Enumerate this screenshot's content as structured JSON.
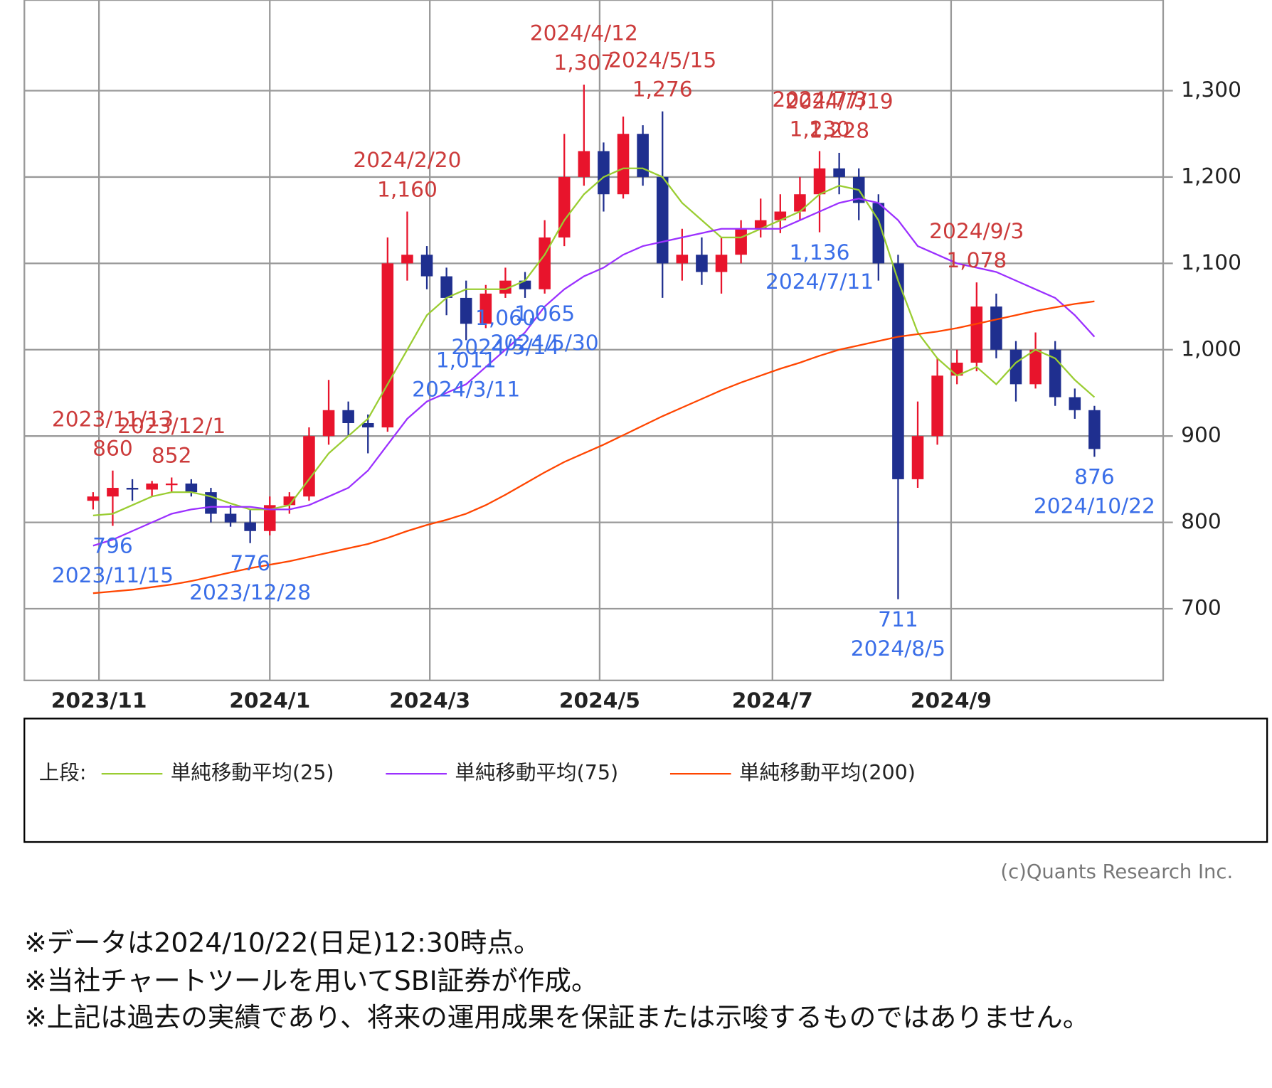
{
  "chart_data": {
    "type": "candlestick",
    "xlim": [
      -3.5,
      54.5
    ],
    "xticks": [
      {
        "value": 0.3,
        "label": "2023/11"
      },
      {
        "value": 9.0,
        "label": "2024/1"
      },
      {
        "value": 17.15,
        "label": "2024/3"
      },
      {
        "value": 25.8,
        "label": "2024/5"
      },
      {
        "value": 34.6,
        "label": "2024/7"
      },
      {
        "value": 43.7,
        "label": "2024/9"
      }
    ],
    "ylim": [
      617,
      1405
    ],
    "yticks": [
      700,
      800,
      900,
      {
        "value": 1000,
        "label": "1,000"
      },
      {
        "value": 1100,
        "label": "1,100"
      },
      {
        "value": 1200,
        "label": "1,200"
      },
      {
        "value": 1300,
        "label": "1,300"
      }
    ],
    "grid": true,
    "up_color": "#e8142c",
    "down_color": "#1f2f8f",
    "open": [
      825,
      830,
      840,
      838,
      845,
      845,
      835,
      810,
      800,
      790,
      820,
      830,
      900,
      930,
      915,
      910,
      1100,
      1110,
      1085,
      1060,
      1030,
      1065,
      1080,
      1070,
      1130,
      1200,
      1230,
      1180,
      1250,
      1200,
      1100,
      1110,
      1090,
      1110,
      1140,
      1150,
      1160,
      1180,
      1210,
      1200,
      1170,
      1100,
      850,
      900,
      970,
      985,
      1050,
      1000,
      960,
      1000,
      945,
      930
    ],
    "high": [
      835,
      860,
      850,
      848,
      852,
      850,
      840,
      820,
      815,
      830,
      835,
      910,
      965,
      940,
      925,
      1130,
      1160,
      1120,
      1095,
      1080,
      1075,
      1095,
      1090,
      1150,
      1250,
      1307,
      1240,
      1270,
      1260,
      1276,
      1140,
      1130,
      1130,
      1150,
      1175,
      1180,
      1200,
      1230,
      1228,
      1210,
      1180,
      1110,
      940,
      990,
      1000,
      1078,
      1065,
      1010,
      1020,
      1010,
      955,
      935
    ],
    "low": [
      815,
      796,
      825,
      830,
      835,
      830,
      800,
      795,
      776,
      785,
      810,
      825,
      890,
      900,
      880,
      905,
      1080,
      1070,
      1040,
      1011,
      1025,
      1060,
      1060,
      1065,
      1120,
      1190,
      1160,
      1175,
      1190,
      1060,
      1080,
      1075,
      1065,
      1100,
      1130,
      1135,
      1150,
      1136,
      1180,
      1150,
      1080,
      711,
      840,
      890,
      960,
      975,
      990,
      940,
      955,
      935,
      920,
      876
    ],
    "close": [
      830,
      840,
      838,
      845,
      845,
      835,
      810,
      800,
      790,
      820,
      830,
      900,
      930,
      915,
      910,
      1100,
      1110,
      1085,
      1060,
      1030,
      1065,
      1080,
      1070,
      1130,
      1200,
      1230,
      1180,
      1250,
      1200,
      1100,
      1110,
      1090,
      1110,
      1140,
      1150,
      1160,
      1180,
      1210,
      1200,
      1170,
      1100,
      850,
      900,
      970,
      985,
      1050,
      1000,
      960,
      1000,
      945,
      930,
      885
    ],
    "lines": [
      {
        "name": "単純移動平均(25)",
        "color": "#9acd32",
        "values": [
          808,
          810,
          820,
          830,
          835,
          835,
          830,
          822,
          815,
          815,
          820,
          850,
          880,
          900,
          920,
          960,
          1000,
          1040,
          1060,
          1070,
          1070,
          1070,
          1080,
          1110,
          1150,
          1180,
          1200,
          1210,
          1210,
          1200,
          1170,
          1150,
          1130,
          1130,
          1140,
          1150,
          1160,
          1180,
          1190,
          1185,
          1150,
          1080,
          1020,
          990,
          970,
          980,
          960,
          985,
          1000,
          990,
          965,
          945
        ]
      },
      {
        "name": "単純移動平均(75)",
        "color": "#9b30ff",
        "values": [
          773,
          780,
          790,
          800,
          810,
          815,
          818,
          818,
          818,
          815,
          815,
          820,
          830,
          840,
          860,
          890,
          920,
          940,
          950,
          960,
          980,
          1000,
          1020,
          1050,
          1070,
          1085,
          1095,
          1110,
          1120,
          1125,
          1130,
          1135,
          1140,
          1140,
          1140,
          1140,
          1150,
          1160,
          1170,
          1175,
          1170,
          1150,
          1120,
          1110,
          1100,
          1095,
          1090,
          1080,
          1070,
          1060,
          1040,
          1015
        ]
      },
      {
        "name": "単純移動平均(200)",
        "color": "#ff4500",
        "values": [
          718,
          720,
          722,
          725,
          728,
          732,
          737,
          742,
          747,
          751,
          755,
          760,
          765,
          770,
          775,
          782,
          790,
          797,
          803,
          810,
          820,
          832,
          845,
          858,
          870,
          880,
          890,
          901,
          912,
          923,
          933,
          943,
          953,
          962,
          970,
          978,
          985,
          993,
          1000,
          1005,
          1010,
          1015,
          1018,
          1021,
          1025,
          1030,
          1035,
          1040,
          1045,
          1049,
          1053,
          1056
        ]
      }
    ],
    "legend_prefix": "上段:",
    "high_annotations": [
      {
        "date": "2023/11/13",
        "value": 860
      },
      {
        "date": "2023/12/1",
        "value": 852
      },
      {
        "date": "2024/2/20",
        "value": 1160,
        "label": "1,160"
      },
      {
        "date": "2024/4/12",
        "value": 1307,
        "label": "1,307"
      },
      {
        "date": "2024/5/15",
        "value": 1276,
        "label": "1,276"
      },
      {
        "date": "2024/7/3",
        "value": 1230,
        "label": "1,230"
      },
      {
        "date": "2024/7/19",
        "value": 1228,
        "label": "1,228"
      },
      {
        "date": "2024/9/3",
        "value": 1078,
        "label": "1,078"
      }
    ],
    "low_annotations": [
      {
        "date": "2023/11/15",
        "value": 796
      },
      {
        "date": "2023/12/28",
        "value": 776
      },
      {
        "date": "2024/3/11",
        "value": 1011,
        "label": "1,011"
      },
      {
        "date": "2024/5/14",
        "value": 1060,
        "label": "1,060"
      },
      {
        "date": "2024/5/30",
        "value": 1065,
        "label": "1,065"
      },
      {
        "date": "2024/7/11",
        "value": 1136,
        "label": "1,136"
      },
      {
        "date": "2024/8/5",
        "value": 711
      },
      {
        "date": "2024/10/22",
        "value": 876
      }
    ]
  },
  "copyright": "(c)Quants Research Inc.",
  "notes": [
    "※データは2024/10/22(日足)12:30時点。",
    "※当社チャートツールを用いてSBI証券が作成。",
    "※上記は過去の実績であり、将来の運用成果を保証または示唆するものではありません。"
  ]
}
